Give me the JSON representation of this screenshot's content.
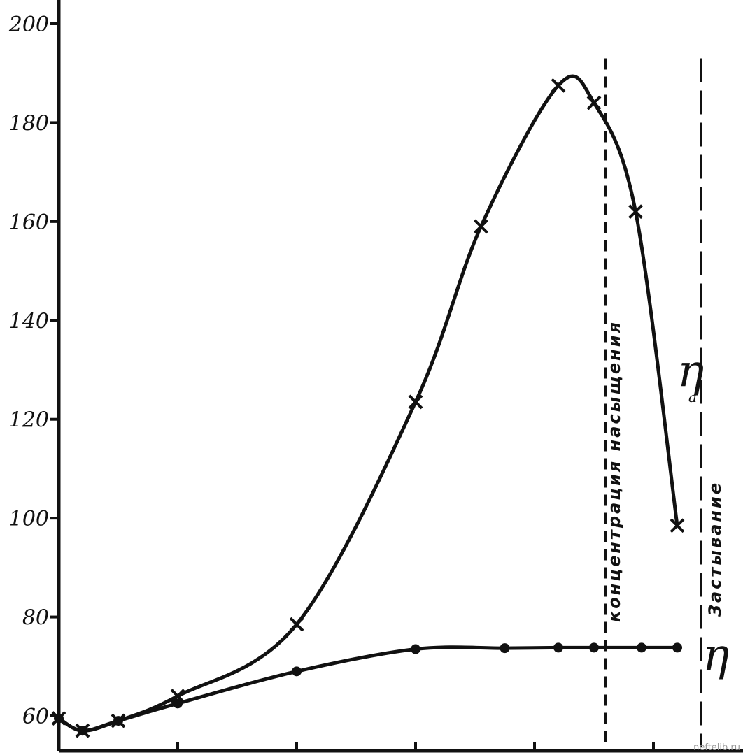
{
  "chart_data": {
    "type": "line",
    "title": "",
    "xlabel": "",
    "ylabel": "",
    "ylim": [
      53,
      205
    ],
    "yticks": [
      60,
      80,
      100,
      120,
      140,
      160,
      180,
      200
    ],
    "ytick_labels": [
      "60",
      "80",
      "100",
      "120",
      "140",
      "160",
      "180",
      "200"
    ],
    "grid": false,
    "series": [
      {
        "name": "η",
        "name_sub": "a",
        "marker": "x",
        "points": [
          {
            "x": 0.0,
            "y": 59.5
          },
          {
            "x": 0.2,
            "y": 57.0
          },
          {
            "x": 0.5,
            "y": 59.0
          },
          {
            "x": 1.0,
            "y": 64.0
          },
          {
            "x": 2.0,
            "y": 78.5
          },
          {
            "x": 3.0,
            "y": 123.5
          },
          {
            "x": 3.55,
            "y": 159.0
          },
          {
            "x": 4.2,
            "y": 187.5
          },
          {
            "x": 4.5,
            "y": 184.0
          },
          {
            "x": 4.85,
            "y": 162.0
          },
          {
            "x": 5.2,
            "y": 98.5
          }
        ]
      },
      {
        "name": "η",
        "marker": "o",
        "points": [
          {
            "x": 0.0,
            "y": 59.5
          },
          {
            "x": 0.2,
            "y": 57.0
          },
          {
            "x": 0.5,
            "y": 59.0
          },
          {
            "x": 1.0,
            "y": 62.5
          },
          {
            "x": 2.0,
            "y": 69.0
          },
          {
            "x": 3.0,
            "y": 73.5
          },
          {
            "x": 3.75,
            "y": 73.7
          },
          {
            "x": 4.2,
            "y": 73.8
          },
          {
            "x": 4.5,
            "y": 73.8
          },
          {
            "x": 4.9,
            "y": 73.8
          },
          {
            "x": 5.2,
            "y": 73.8
          }
        ]
      }
    ],
    "vlines": [
      {
        "x": 4.6,
        "label": "концентрация насыщения",
        "style": "dashed"
      },
      {
        "x": 5.4,
        "label": "Застывание",
        "style": "long-dashed"
      }
    ]
  },
  "watermark": "neftelib.ru"
}
